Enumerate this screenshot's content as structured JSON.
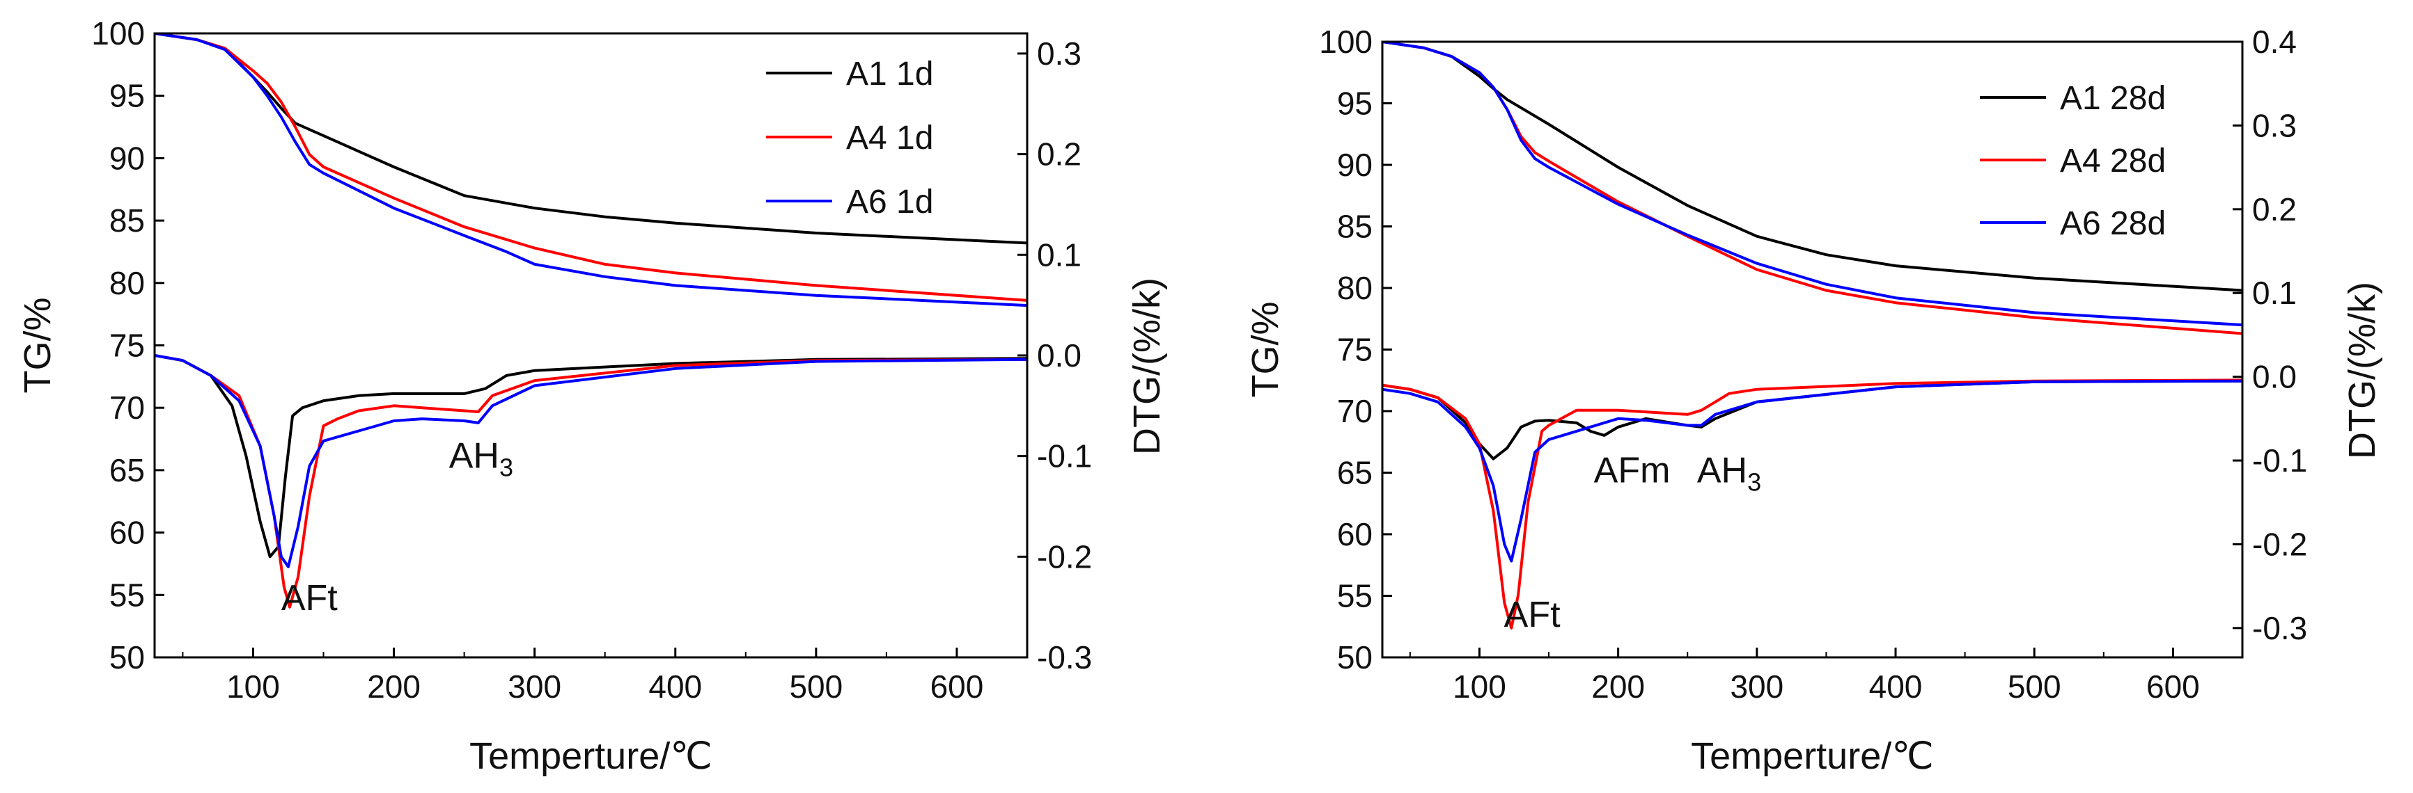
{
  "chart_data": [
    {
      "type": "line",
      "panel": "left",
      "xlabel": "Temperture/℃",
      "ylabel": "TG/%",
      "y2label": "DTG/(%/k)",
      "xlim": [
        30,
        650
      ],
      "ylim": [
        50,
        100
      ],
      "y2lim": [
        -0.3,
        0.32
      ],
      "xticks": [
        100,
        200,
        300,
        400,
        500,
        600
      ],
      "yticks": [
        50,
        55,
        60,
        65,
        70,
        75,
        80,
        85,
        90,
        95,
        100
      ],
      "y2ticks": [
        -0.3,
        -0.2,
        -0.1,
        0.0,
        0.1,
        0.2,
        0.3
      ],
      "xtick_labels": [
        "100",
        "200",
        "300",
        "400",
        "500",
        "600"
      ],
      "ytick_labels": [
        "50",
        "55",
        "60",
        "65",
        "70",
        "75",
        "80",
        "85",
        "90",
        "95",
        "100"
      ],
      "y2tick_labels": [
        "-0.3",
        "-0.2",
        "-0.1",
        "0.0",
        "0.1",
        "0.2",
        "0.3"
      ],
      "legend": [
        {
          "name": "A1 1d",
          "color": "#000000"
        },
        {
          "name": "A4 1d",
          "color": "#ff0000"
        },
        {
          "name": "A6 1d",
          "color": "#0000ff"
        }
      ],
      "annotations": [
        {
          "text": "AFt",
          "x": 140,
          "y": 53.8
        },
        {
          "text": "AH",
          "sub": "3",
          "x": 262,
          "y": 65.2
        }
      ],
      "tg_series": [
        {
          "name": "A1 1d",
          "color": "#000000",
          "x": [
            30,
            60,
            80,
            100,
            110,
            120,
            130,
            150,
            200,
            250,
            300,
            350,
            400,
            500,
            650
          ],
          "y": [
            100,
            99.5,
            98.8,
            96.5,
            95.3,
            94.0,
            92.8,
            91.8,
            89.3,
            87.0,
            86.0,
            85.3,
            84.8,
            84.0,
            83.2
          ]
        },
        {
          "name": "A4 1d",
          "color": "#ff0000",
          "x": [
            30,
            60,
            80,
            100,
            110,
            120,
            130,
            140,
            150,
            200,
            250,
            300,
            350,
            400,
            500,
            650
          ],
          "y": [
            100,
            99.5,
            98.8,
            97.0,
            96.0,
            94.5,
            92.5,
            90.3,
            89.3,
            86.8,
            84.5,
            82.8,
            81.5,
            80.8,
            79.8,
            78.6
          ]
        },
        {
          "name": "A6 1d",
          "color": "#0000ff",
          "x": [
            30,
            60,
            80,
            100,
            110,
            120,
            130,
            140,
            150,
            200,
            250,
            280,
            300,
            350,
            400,
            500,
            650
          ],
          "y": [
            100,
            99.5,
            98.7,
            96.5,
            95.0,
            93.3,
            91.3,
            89.5,
            88.8,
            86.0,
            83.8,
            82.5,
            81.5,
            80.5,
            79.8,
            79.0,
            78.2
          ]
        }
      ],
      "dtg_series": [
        {
          "name": "A1 1d",
          "color": "#000000",
          "x": [
            30,
            50,
            70,
            85,
            95,
            105,
            112,
            118,
            123,
            128,
            135,
            150,
            175,
            200,
            250,
            265,
            280,
            300,
            400,
            500,
            650
          ],
          "y": [
            0.0,
            -0.005,
            -0.02,
            -0.05,
            -0.1,
            -0.165,
            -0.2,
            -0.19,
            -0.12,
            -0.06,
            -0.052,
            -0.045,
            -0.04,
            -0.038,
            -0.038,
            -0.033,
            -0.02,
            -0.015,
            -0.008,
            -0.004,
            -0.003
          ]
        },
        {
          "name": "A4 1d",
          "color": "#ff0000",
          "x": [
            30,
            50,
            70,
            90,
            105,
            115,
            122,
            126,
            132,
            140,
            150,
            160,
            175,
            200,
            250,
            260,
            270,
            300,
            400,
            500,
            650
          ],
          "y": [
            0.0,
            -0.005,
            -0.02,
            -0.04,
            -0.09,
            -0.16,
            -0.23,
            -0.25,
            -0.22,
            -0.14,
            -0.07,
            -0.063,
            -0.055,
            -0.05,
            -0.055,
            -0.056,
            -0.04,
            -0.025,
            -0.01,
            -0.005,
            -0.004
          ]
        },
        {
          "name": "A6 1d",
          "color": "#0000ff",
          "x": [
            30,
            50,
            70,
            90,
            105,
            115,
            120,
            125,
            132,
            140,
            150,
            175,
            200,
            220,
            250,
            260,
            270,
            300,
            400,
            500,
            650
          ],
          "y": [
            0.0,
            -0.005,
            -0.02,
            -0.045,
            -0.09,
            -0.16,
            -0.2,
            -0.21,
            -0.17,
            -0.11,
            -0.085,
            -0.075,
            -0.065,
            -0.063,
            -0.065,
            -0.067,
            -0.05,
            -0.03,
            -0.013,
            -0.006,
            -0.004
          ]
        }
      ]
    },
    {
      "type": "line",
      "panel": "right",
      "xlabel": "Temperture/℃",
      "ylabel": "TG/%",
      "y2label": "DTG/(%/k)",
      "xlim": [
        30,
        650
      ],
      "ylim": [
        50,
        100
      ],
      "y2lim": [
        -0.335,
        0.4
      ],
      "xticks": [
        100,
        200,
        300,
        400,
        500,
        600
      ],
      "yticks": [
        50,
        55,
        60,
        65,
        70,
        75,
        80,
        85,
        90,
        95,
        100
      ],
      "y2ticks": [
        -0.3,
        -0.2,
        -0.1,
        0.0,
        0.1,
        0.2,
        0.3,
        0.4
      ],
      "xtick_labels": [
        "100",
        "200",
        "300",
        "400",
        "500",
        "600"
      ],
      "ytick_labels": [
        "50",
        "55",
        "60",
        "65",
        "70",
        "75",
        "80",
        "85",
        "90",
        "95",
        "100"
      ],
      "y2tick_labels": [
        "-0.3",
        "-0.2",
        "-0.1",
        "0.0",
        "0.1",
        "0.2",
        "0.3",
        "0.4"
      ],
      "legend": [
        {
          "name": "A1 28d",
          "color": "#000000"
        },
        {
          "name": "A4 28d",
          "color": "#ff0000"
        },
        {
          "name": "A6 28d",
          "color": "#0000ff"
        }
      ],
      "annotations": [
        {
          "text": "AFt",
          "x": 138,
          "y": 52.5
        },
        {
          "text": "AFm",
          "x": 210,
          "y": 64.2
        },
        {
          "text": "AH",
          "sub": "3",
          "x": 280,
          "y": 64.2
        }
      ],
      "tg_series": [
        {
          "name": "A1 28d",
          "color": "#000000",
          "x": [
            30,
            60,
            80,
            100,
            110,
            120,
            150,
            200,
            250,
            300,
            350,
            400,
            500,
            650
          ],
          "y": [
            100,
            99.5,
            98.8,
            97.2,
            96.2,
            95.3,
            93.3,
            89.8,
            86.7,
            84.2,
            82.7,
            81.8,
            80.8,
            79.8
          ]
        },
        {
          "name": "A4 28d",
          "color": "#ff0000",
          "x": [
            30,
            60,
            80,
            100,
            110,
            120,
            130,
            140,
            150,
            200,
            250,
            300,
            350,
            400,
            500,
            650
          ],
          "y": [
            100,
            99.5,
            98.8,
            97.5,
            96.3,
            94.5,
            92.3,
            91.0,
            90.3,
            87.0,
            84.2,
            81.5,
            79.8,
            78.8,
            77.6,
            76.3
          ]
        },
        {
          "name": "A6 28d",
          "color": "#0000ff",
          "x": [
            30,
            60,
            80,
            100,
            110,
            120,
            130,
            140,
            150,
            200,
            250,
            300,
            350,
            400,
            500,
            650
          ],
          "y": [
            100,
            99.5,
            98.8,
            97.5,
            96.3,
            94.5,
            92.0,
            90.5,
            89.8,
            86.8,
            84.3,
            82.0,
            80.3,
            79.2,
            78.0,
            77.0
          ]
        }
      ],
      "dtg_series": [
        {
          "name": "A1 28d",
          "color": "#000000",
          "x": [
            30,
            50,
            70,
            90,
            100,
            110,
            120,
            130,
            140,
            150,
            170,
            180,
            190,
            200,
            220,
            250,
            260,
            270,
            300,
            400,
            500,
            650
          ],
          "y": [
            -0.01,
            -0.015,
            -0.025,
            -0.055,
            -0.08,
            -0.098,
            -0.085,
            -0.06,
            -0.053,
            -0.052,
            -0.055,
            -0.065,
            -0.07,
            -0.06,
            -0.05,
            -0.058,
            -0.06,
            -0.05,
            -0.03,
            -0.012,
            -0.006,
            -0.005
          ]
        },
        {
          "name": "A4 28d",
          "color": "#ff0000",
          "x": [
            30,
            50,
            70,
            90,
            100,
            110,
            118,
            123,
            128,
            135,
            145,
            150,
            170,
            200,
            250,
            260,
            270,
            280,
            300,
            400,
            500,
            650
          ],
          "y": [
            -0.01,
            -0.015,
            -0.025,
            -0.05,
            -0.08,
            -0.16,
            -0.27,
            -0.3,
            -0.26,
            -0.15,
            -0.065,
            -0.058,
            -0.04,
            -0.04,
            -0.045,
            -0.04,
            -0.03,
            -0.02,
            -0.015,
            -0.008,
            -0.005,
            -0.004
          ]
        },
        {
          "name": "A6 28d",
          "color": "#0000ff",
          "x": [
            30,
            50,
            70,
            90,
            100,
            110,
            118,
            123,
            130,
            140,
            150,
            170,
            200,
            220,
            250,
            260,
            270,
            300,
            400,
            500,
            650
          ],
          "y": [
            -0.015,
            -0.02,
            -0.03,
            -0.06,
            -0.085,
            -0.13,
            -0.2,
            -0.22,
            -0.17,
            -0.09,
            -0.075,
            -0.065,
            -0.05,
            -0.052,
            -0.058,
            -0.058,
            -0.045,
            -0.03,
            -0.012,
            -0.006,
            -0.005
          ]
        }
      ]
    }
  ]
}
